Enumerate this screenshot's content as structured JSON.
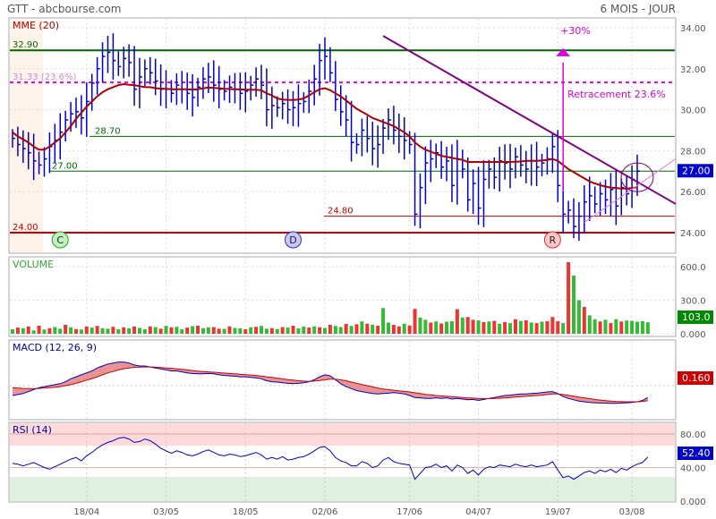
{
  "header": {
    "left": "GTT - abcbourse.com",
    "right": "6 MOIS - JOUR"
  },
  "colors": {
    "candle": "#0000cc",
    "mme": "#b00000",
    "resistance_green": "#006600",
    "support_red": "#cc0000",
    "trendline": "#800080",
    "retracement": "#e000e0",
    "volume_up": "#33bb33",
    "volume_down": "#ee3333",
    "macd_line": "#0000cc",
    "signal_line": "#cc0000",
    "rsi_overbought_band": "#ffdada",
    "rsi_oversold_band": "#dff0df",
    "price_badge": "#0000cc",
    "volume_badge": "#008800",
    "macd_badge": "#cc0000"
  },
  "chart_data": [
    {
      "type": "line",
      "panel": "price",
      "title": "MME (20)",
      "ylim": [
        22.9,
        35.0
      ],
      "y_ticks": [
        "34.00",
        "32.00",
        "30.00",
        "28.00",
        "26.00",
        "24.00"
      ],
      "x_ticks": [
        "18/04",
        "03/05",
        "18/05",
        "02/06",
        "17/06",
        "04/07",
        "19/07",
        "03/08"
      ],
      "closes": [
        28.6,
        28.3,
        28.1,
        27.9,
        27.5,
        27.3,
        27.6,
        28.2,
        28.5,
        28.9,
        29.5,
        29.8,
        29.9,
        29.6,
        30.4,
        31.3,
        32.0,
        32.6,
        32.8,
        32.4,
        32.1,
        32.5,
        32.3,
        31.0,
        31.6,
        32.0,
        31.8,
        31.4,
        31.0,
        31.0,
        30.8,
        31.2,
        31.0,
        30.8,
        30.6,
        31.1,
        31.5,
        31.6,
        31.2,
        31.0,
        30.9,
        31.1,
        31.0,
        30.8,
        30.9,
        31.2,
        31.5,
        31.2,
        30.0,
        30.2,
        30.1,
        30.3,
        30.0,
        30.1,
        30.3,
        30.4,
        30.9,
        31.5,
        32.4,
        32.6,
        31.8,
        30.5,
        29.9,
        29.5,
        28.4,
        28.3,
        29.0,
        28.6,
        28.1,
        28.3,
        29.1,
        29.5,
        29.0,
        28.7,
        28.5,
        28.3,
        24.9,
        26.2,
        27.4,
        27.6,
        27.9,
        27.2,
        27.5,
        26.3,
        27.6,
        27.1,
        25.6,
        26.4,
        25.2,
        26.6,
        27.1,
        26.7,
        27.5,
        27.4,
        27.1,
        27.7,
        27.3,
        27.1,
        27.5,
        27.2,
        27.4,
        27.6,
        28.2,
        26.3,
        24.9,
        25.1,
        24.3,
        24.8,
        25.5,
        25.8,
        25.4,
        25.9,
        25.6,
        26.1,
        25.3,
        26.2,
        25.9,
        26.6,
        27.0
      ],
      "series": [
        {
          "name": "MME (20)",
          "values": [
            28.9,
            28.7,
            28.55,
            28.4,
            28.2,
            28.05,
            28.05,
            28.2,
            28.4,
            28.6,
            28.9,
            29.2,
            29.55,
            29.85,
            30.15,
            30.4,
            30.65,
            30.85,
            31.0,
            31.1,
            31.2,
            31.25,
            31.22,
            31.2,
            31.15,
            31.1,
            31.1,
            31.05,
            31.03,
            31.02,
            31.0,
            31.0,
            31.0,
            31.0,
            30.98,
            31.0,
            31.05,
            31.08,
            31.06,
            31.05,
            31.02,
            31.01,
            31.0,
            30.99,
            30.98,
            30.98,
            30.97,
            30.95,
            30.8,
            30.7,
            30.55,
            30.5,
            30.48,
            30.47,
            30.5,
            30.55,
            30.7,
            30.85,
            31.0,
            31.05,
            30.95,
            30.8,
            30.65,
            30.45,
            30.25,
            30.05,
            29.9,
            29.75,
            29.6,
            29.5,
            29.4,
            29.3,
            29.2,
            29.05,
            28.9,
            28.7,
            28.4,
            28.2,
            28.05,
            27.95,
            27.85,
            27.75,
            27.7,
            27.65,
            27.6,
            27.55,
            27.45,
            27.45,
            27.45,
            27.45,
            27.45,
            27.45,
            27.45,
            27.45,
            27.45,
            27.46,
            27.47,
            27.5,
            27.5,
            27.5,
            27.52,
            27.55,
            27.6,
            27.5,
            27.3,
            27.1,
            26.95,
            26.8,
            26.65,
            26.5,
            26.4,
            26.32,
            26.25,
            26.2,
            26.18,
            26.15,
            26.15,
            26.18,
            26.22
          ]
        }
      ],
      "lines": {
        "resistance": "32.90",
        "retracement": "31.33 (23.6%)",
        "upper_support": "28.70",
        "mid_support": "27.00",
        "low_support": "24.80",
        "floor": "24.00"
      },
      "annotations": {
        "target": "+30%",
        "retracement": "Retracement 23.6%",
        "markers": [
          "C",
          "D",
          "R"
        ],
        "last_price": "27.00"
      }
    },
    {
      "type": "bar",
      "panel": "volume",
      "title": "VOLUME",
      "ylim": [
        0,
        680
      ],
      "y_ticks": [
        "600.0",
        "300.0",
        "0.000"
      ],
      "last_value": "103.0",
      "values": [
        40,
        55,
        48,
        65,
        30,
        72,
        38,
        50,
        60,
        45,
        80,
        58,
        42,
        38,
        64,
        55,
        70,
        50,
        45,
        62,
        40,
        58,
        48,
        65,
        52,
        40,
        66,
        60,
        45,
        70,
        58,
        62,
        40,
        55,
        68,
        72,
        50,
        58,
        60,
        45,
        44,
        66,
        52,
        48,
        40,
        58,
        62,
        70,
        45,
        50,
        42,
        60,
        55,
        72,
        48,
        64,
        56,
        66,
        58,
        52,
        80,
        70,
        60,
        88,
        70,
        85,
        110,
        90,
        80,
        72,
        230,
        100,
        80,
        66,
        90,
        74,
        222,
        145,
        125,
        100,
        110,
        92,
        108,
        112,
        220,
        145,
        150,
        125,
        120,
        105,
        110,
        115,
        90,
        105,
        95,
        130,
        115,
        120,
        100,
        95,
        108,
        112,
        150,
        112,
        95,
        640,
        520,
        300,
        240,
        165,
        130,
        110,
        125,
        95,
        130,
        110,
        118,
        115,
        108,
        112,
        103
      ],
      "up": [
        true,
        false,
        true,
        false,
        true,
        false,
        true,
        false,
        true,
        true,
        false,
        true,
        false,
        true,
        false,
        true,
        false,
        true,
        true,
        false,
        true,
        false,
        true,
        false,
        true,
        true,
        false,
        true,
        false,
        true,
        false,
        true,
        true,
        false,
        true,
        false,
        true,
        true,
        false,
        false,
        true,
        false,
        true,
        true,
        false,
        true,
        false,
        true,
        true,
        false,
        true,
        false,
        true,
        false,
        true,
        true,
        false,
        true,
        false,
        true,
        false,
        true,
        true,
        false,
        true,
        false,
        true,
        false,
        true,
        false,
        true,
        true,
        false,
        false,
        true,
        false,
        false,
        true,
        true,
        false,
        true,
        false,
        true,
        true,
        false,
        true,
        false,
        false,
        true,
        false,
        true,
        false,
        true,
        false,
        true,
        false,
        true,
        false,
        true,
        false,
        true,
        false,
        false,
        false,
        true,
        false,
        true,
        true,
        false,
        true,
        true,
        false,
        true,
        false,
        true,
        false,
        true,
        true,
        true,
        true,
        true
      ]
    },
    {
      "type": "line",
      "panel": "macd",
      "title": "MACD (12, 26, 9)",
      "ylim": [
        -1.4,
        1.4
      ],
      "last_value": "0.160",
      "series": [
        {
          "name": "MACD",
          "values": [
            -0.5,
            -0.45,
            -0.4,
            -0.3,
            -0.2,
            -0.1,
            -0.05,
            0.0,
            0.05,
            0.1,
            0.2,
            0.35,
            0.45,
            0.55,
            0.65,
            0.75,
            0.9,
            1.0,
            1.1,
            1.15,
            1.2,
            1.2,
            1.15,
            1.05,
            1.0,
            1.0,
            0.95,
            0.9,
            0.85,
            0.8,
            0.75,
            0.75,
            0.7,
            0.65,
            0.62,
            0.6,
            0.6,
            0.62,
            0.6,
            0.55,
            0.52,
            0.5,
            0.48,
            0.45,
            0.45,
            0.42,
            0.4,
            0.35,
            0.25,
            0.2,
            0.18,
            0.15,
            0.12,
            0.1,
            0.12,
            0.15,
            0.2,
            0.3,
            0.45,
            0.55,
            0.5,
            0.3,
            0.1,
            -0.05,
            -0.15,
            -0.25,
            -0.3,
            -0.35,
            -0.4,
            -0.42,
            -0.4,
            -0.38,
            -0.35,
            -0.38,
            -0.42,
            -0.5,
            -0.6,
            -0.62,
            -0.65,
            -0.65,
            -0.62,
            -0.65,
            -0.62,
            -0.68,
            -0.65,
            -0.68,
            -0.72,
            -0.7,
            -0.75,
            -0.7,
            -0.65,
            -0.6,
            -0.55,
            -0.5,
            -0.48,
            -0.45,
            -0.42,
            -0.42,
            -0.4,
            -0.38,
            -0.35,
            -0.32,
            -0.3,
            -0.4,
            -0.55,
            -0.65,
            -0.72,
            -0.78,
            -0.82,
            -0.85,
            -0.87,
            -0.88,
            -0.88,
            -0.9,
            -0.9,
            -0.88,
            -0.87,
            -0.85,
            -0.82,
            -0.75,
            -0.6
          ]
        },
        {
          "name": "Signal",
          "values": [
            -0.1,
            -0.12,
            -0.14,
            -0.15,
            -0.15,
            -0.14,
            -0.12,
            -0.1,
            -0.08,
            -0.05,
            0.0,
            0.05,
            0.12,
            0.2,
            0.28,
            0.36,
            0.45,
            0.55,
            0.65,
            0.72,
            0.8,
            0.86,
            0.9,
            0.93,
            0.94,
            0.95,
            0.95,
            0.94,
            0.92,
            0.9,
            0.88,
            0.86,
            0.83,
            0.8,
            0.77,
            0.74,
            0.72,
            0.7,
            0.68,
            0.66,
            0.64,
            0.62,
            0.6,
            0.58,
            0.56,
            0.54,
            0.52,
            0.49,
            0.45,
            0.42,
            0.38,
            0.35,
            0.31,
            0.28,
            0.25,
            0.23,
            0.22,
            0.23,
            0.26,
            0.3,
            0.33,
            0.33,
            0.3,
            0.25,
            0.18,
            0.12,
            0.06,
            0.0,
            -0.06,
            -0.12,
            -0.17,
            -0.2,
            -0.23,
            -0.26,
            -0.29,
            -0.32,
            -0.36,
            -0.4,
            -0.44,
            -0.47,
            -0.5,
            -0.52,
            -0.54,
            -0.56,
            -0.58,
            -0.6,
            -0.62,
            -0.63,
            -0.65,
            -0.66,
            -0.66,
            -0.65,
            -0.64,
            -0.62,
            -0.6,
            -0.58,
            -0.56,
            -0.54,
            -0.52,
            -0.5,
            -0.48,
            -0.45,
            -0.42,
            -0.42,
            -0.45,
            -0.49,
            -0.53,
            -0.58,
            -0.62,
            -0.66,
            -0.7,
            -0.73,
            -0.76,
            -0.78,
            -0.8,
            -0.81,
            -0.82,
            -0.82,
            -0.82,
            -0.8,
            -0.76
          ]
        }
      ]
    },
    {
      "type": "line",
      "panel": "rsi",
      "title": "RSI (14)",
      "ylim": [
        0,
        100
      ],
      "y_ticks": [
        "80.00",
        "40.00",
        "0.000"
      ],
      "last_value": "52.40",
      "series": [
        {
          "name": "RSI (14)",
          "values": [
            45,
            44,
            42,
            44,
            46,
            43,
            40,
            38,
            41,
            44,
            47,
            50,
            52,
            48,
            54,
            58,
            63,
            67,
            70,
            72,
            75,
            76,
            74,
            70,
            71,
            74,
            72,
            68,
            63,
            60,
            57,
            60,
            58,
            55,
            54,
            56,
            59,
            61,
            58,
            55,
            54,
            56,
            55,
            53,
            54,
            56,
            58,
            55,
            50,
            52,
            50,
            53,
            49,
            50,
            52,
            53,
            56,
            60,
            64,
            65,
            60,
            52,
            48,
            46,
            42,
            42,
            47,
            45,
            40,
            42,
            49,
            52,
            47,
            45,
            44,
            43,
            26,
            33,
            40,
            41,
            44,
            40,
            42,
            36,
            43,
            40,
            33,
            37,
            31,
            38,
            41,
            40,
            43,
            42,
            41,
            44,
            42,
            41,
            43,
            41,
            42,
            43,
            47,
            37,
            28,
            30,
            26,
            30,
            34,
            36,
            33,
            37,
            35,
            38,
            34,
            39,
            37,
            41,
            44,
            46,
            52.4
          ]
        }
      ]
    }
  ]
}
